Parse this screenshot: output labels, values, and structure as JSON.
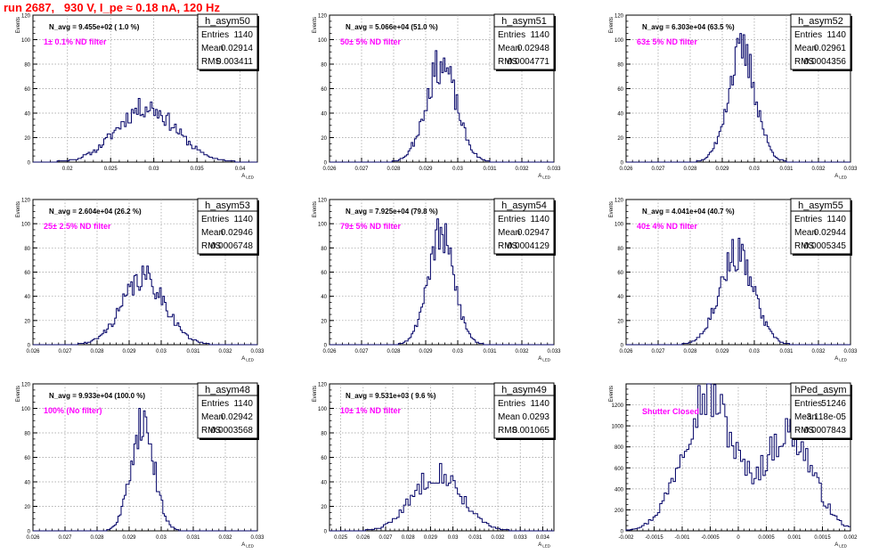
{
  "title": "run 2687,   930 V, I_pe ≈ 0.18 nA, 120 Hz",
  "chart_data": [
    {
      "type": "bar",
      "title": "h_asym50",
      "xlabel": "A_LED",
      "ylabel": "Events",
      "xlim": [
        0.016,
        0.042
      ],
      "ylim": [
        0,
        120
      ],
      "xticks": [
        "0.02",
        "0.025",
        "0.03",
        "0.035",
        "0.04"
      ],
      "yticks": [
        "0",
        "20",
        "40",
        "60",
        "80",
        "100",
        "120"
      ],
      "stats": {
        "entries_label": "Entries",
        "entries": "1140",
        "mean_label": "Mean",
        "mean": "0.02914",
        "rms_label": "RMS",
        "rms": "0.003411"
      },
      "navg_text": "N_avg = 9.455e+02 ( 1.0 %)",
      "filter_text": "1± 0.1% ND filter",
      "mean_value": 0.02914,
      "rms_value": 0.003411,
      "peak": 45,
      "bin_width": 0.0002,
      "noise_seed": 11
    },
    {
      "type": "bar",
      "title": "h_asym51",
      "xlabel": "A_LED",
      "ylabel": "Events",
      "xlim": [
        0.026,
        0.033
      ],
      "ylim": [
        0,
        120
      ],
      "xticks": [
        "0.026",
        "0.027",
        "0.028",
        "0.029",
        "0.03",
        "0.031",
        "0.032",
        "0.033"
      ],
      "yticks": [
        "0",
        "20",
        "40",
        "60",
        "80",
        "100",
        "120"
      ],
      "stats": {
        "entries_label": "Entries",
        "entries": "1140",
        "mean_label": "Mean",
        "mean": "0.02948",
        "rms_label": "RMS",
        "rms": "0.0004771"
      },
      "navg_text": "N_avg = 5.066e+04 (51.0 %)",
      "filter_text": "50± 5% ND filter",
      "mean_value": 0.02948,
      "rms_value": 0.0004771,
      "peak": 80,
      "bin_width": 5e-05,
      "noise_seed": 23
    },
    {
      "type": "bar",
      "title": "h_asym52",
      "xlabel": "A_LED",
      "ylabel": "Events",
      "xlim": [
        0.026,
        0.033
      ],
      "ylim": [
        0,
        120
      ],
      "xticks": [
        "0.026",
        "0.027",
        "0.028",
        "0.029",
        "0.03",
        "0.031",
        "0.032",
        "0.033"
      ],
      "yticks": [
        "0",
        "20",
        "40",
        "60",
        "80",
        "100",
        "120"
      ],
      "stats": {
        "entries_label": "Entries",
        "entries": "1140",
        "mean_label": "Mean",
        "mean": "0.02961",
        "rms_label": "RMS",
        "rms": "0.0004356"
      },
      "navg_text": "N_avg = 6.303e+04 (63.5 %)",
      "filter_text": "63± 5% ND filter",
      "mean_value": 0.02961,
      "rms_value": 0.0004356,
      "peak": 90,
      "bin_width": 5e-05,
      "noise_seed": 37
    },
    {
      "type": "bar",
      "title": "h_asym53",
      "xlabel": "A_LED",
      "ylabel": "Events",
      "xlim": [
        0.026,
        0.033
      ],
      "ylim": [
        0,
        120
      ],
      "xticks": [
        "0.026",
        "0.027",
        "0.028",
        "0.029",
        "0.03",
        "0.031",
        "0.032",
        "0.033"
      ],
      "yticks": [
        "0",
        "20",
        "40",
        "60",
        "80",
        "100",
        "120"
      ],
      "stats": {
        "entries_label": "Entries",
        "entries": "1140",
        "mean_label": "Mean",
        "mean": "0.02946",
        "rms_label": "RMS",
        "rms": "0.0006748"
      },
      "navg_text": "N_avg = 2.604e+04 (26.2 %)",
      "filter_text": "25± 2.5% ND filter",
      "mean_value": 0.02946,
      "rms_value": 0.0006748,
      "peak": 55,
      "bin_width": 5e-05,
      "noise_seed": 41
    },
    {
      "type": "bar",
      "title": "h_asym54",
      "xlabel": "A_LED",
      "ylabel": "Events",
      "xlim": [
        0.026,
        0.033
      ],
      "ylim": [
        0,
        120
      ],
      "xticks": [
        "0.026",
        "0.027",
        "0.028",
        "0.029",
        "0.03",
        "0.031",
        "0.032",
        "0.033"
      ],
      "yticks": [
        "0",
        "20",
        "40",
        "60",
        "80",
        "100",
        "120"
      ],
      "stats": {
        "entries_label": "Entries",
        "entries": "1140",
        "mean_label": "Mean",
        "mean": "0.02947",
        "rms_label": "RMS",
        "rms": "0.0004129"
      },
      "navg_text": "N_avg = 7.925e+04 (79.8 %)",
      "filter_text": "79± 5% ND filter",
      "mean_value": 0.02947,
      "rms_value": 0.0004129,
      "peak": 90,
      "bin_width": 5e-05,
      "noise_seed": 53
    },
    {
      "type": "bar",
      "title": "h_asym55",
      "xlabel": "A_LED",
      "ylabel": "Events",
      "xlim": [
        0.026,
        0.033
      ],
      "ylim": [
        0,
        120
      ],
      "xticks": [
        "0.026",
        "0.027",
        "0.028",
        "0.029",
        "0.03",
        "0.031",
        "0.032",
        "0.033"
      ],
      "yticks": [
        "0",
        "20",
        "40",
        "60",
        "80",
        "100",
        "120"
      ],
      "stats": {
        "entries_label": "Entries",
        "entries": "1140",
        "mean_label": "Mean",
        "mean": "0.02944",
        "rms_label": "RMS",
        "rms": "0.0005345"
      },
      "navg_text": "N_avg = 4.041e+04 (40.7 %)",
      "filter_text": "40± 4% ND filter",
      "mean_value": 0.02944,
      "rms_value": 0.0005345,
      "peak": 75,
      "bin_width": 5e-05,
      "noise_seed": 67
    },
    {
      "type": "bar",
      "title": "h_asym48",
      "xlabel": "A_LED",
      "ylabel": "Events",
      "xlim": [
        0.026,
        0.033
      ],
      "ylim": [
        0,
        120
      ],
      "xticks": [
        "0.026",
        "0.027",
        "0.028",
        "0.029",
        "0.03",
        "0.031",
        "0.032",
        "0.033"
      ],
      "yticks": [
        "0",
        "20",
        "40",
        "60",
        "80",
        "100",
        "120"
      ],
      "stats": {
        "entries_label": "Entries",
        "entries": "1140",
        "mean_label": "Mean",
        "mean": "0.02942",
        "rms_label": "RMS",
        "rms": "0.0003568"
      },
      "navg_text": "N_avg = 9.933e+04 (100.0 %)",
      "filter_text": "100% (No filter)",
      "mean_value": 0.02942,
      "rms_value": 0.0003568,
      "peak": 90,
      "bin_width": 5e-05,
      "noise_seed": 71
    },
    {
      "type": "bar",
      "title": "h_asym49",
      "xlabel": "A_LED",
      "ylabel": "Events",
      "xlim": [
        0.0245,
        0.0345
      ],
      "ylim": [
        0,
        120
      ],
      "xticks": [
        "0.025",
        "0.026",
        "0.027",
        "0.028",
        "0.029",
        "0.03",
        "0.031",
        "0.032",
        "0.033",
        "0.034"
      ],
      "yticks": [
        "0",
        "20",
        "40",
        "60",
        "80",
        "100",
        "120"
      ],
      "stats": {
        "entries_label": "Entries",
        "entries": "1140",
        "mean_label": "Mean",
        "mean": "0.0293",
        "rms_label": "RMS",
        "rms": "0.001065"
      },
      "navg_text": "N_avg = 9.531e+03 ( 9.6 %)",
      "filter_text": "10± 1% ND filter",
      "mean_value": 0.0293,
      "rms_value": 0.001065,
      "peak": 48,
      "bin_width": 0.0001,
      "noise_seed": 83
    },
    {
      "type": "bar",
      "title": "hPed_asym",
      "xlabel": "A_LED",
      "ylabel": "Events",
      "xlim": [
        -0.002,
        0.002
      ],
      "ylim": [
        0,
        1400
      ],
      "xticks": [
        "-0.002",
        "-0.0015",
        "-0.001",
        "-0.0005",
        "0",
        "0.0005",
        "0.001",
        "0.0015",
        "0.002"
      ],
      "yticks": [
        "0",
        "200",
        "400",
        "600",
        "800",
        "1000",
        "1200"
      ],
      "stats": {
        "entries_label": "Entries",
        "entries": "51246",
        "mean_label": "Mean",
        "mean": "-3.118e-05",
        "rms_label": "RMS",
        "rms": "0.0007843"
      },
      "navg_text": "",
      "filter_text": "Shutter Closed",
      "mean_value": -3.118e-05,
      "rms_value": 0.0007843,
      "peak": 1300,
      "bin_width": 4e-05,
      "noise_seed": 97,
      "shape": "double"
    }
  ]
}
